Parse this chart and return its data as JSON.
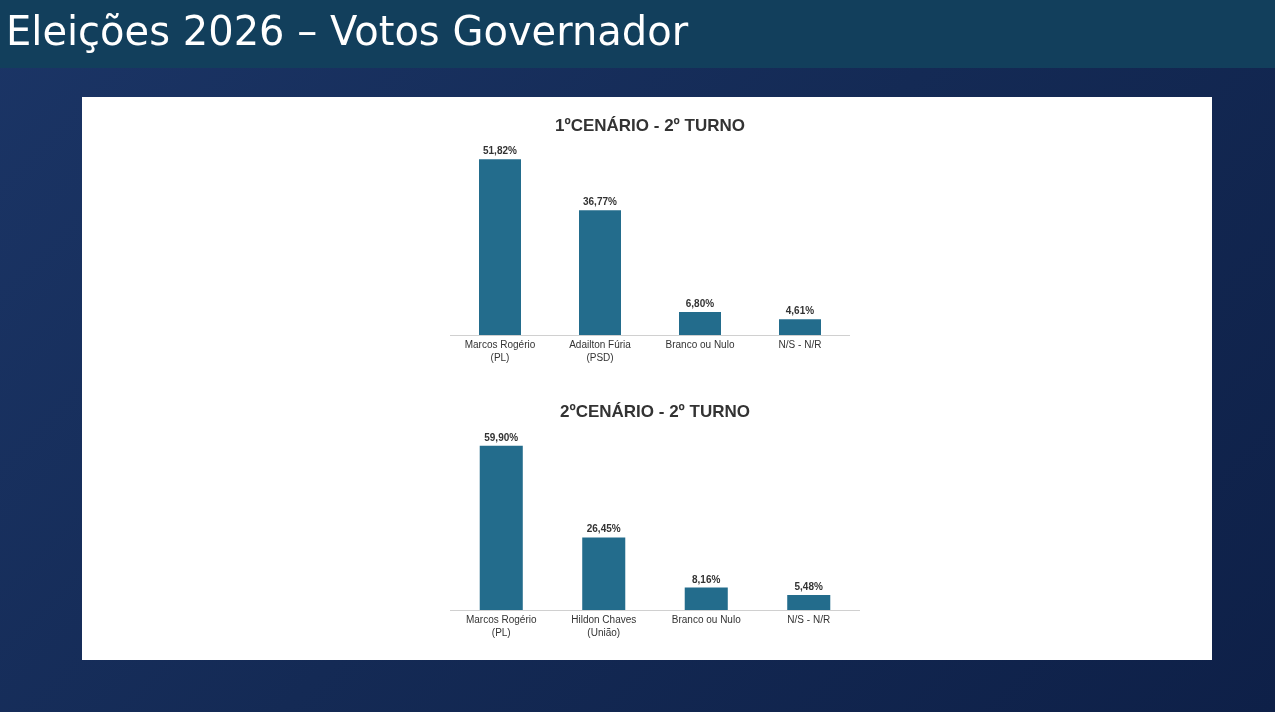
{
  "chart_data": [
    {
      "type": "bar",
      "title": "1ºCENÁRIO - 2º TURNO",
      "annotations": [
        "Eleições 2026 – Votos Governador"
      ],
      "categories": [
        "Marcos Rogério\n(PL)",
        "Adailton Fúria\n(PSD)",
        "Branco ou Nulo",
        "N/S - N/R"
      ],
      "values": [
        51.82,
        36.77,
        6.8,
        4.61
      ],
      "value_labels": [
        "51,82%",
        "36,77%",
        "6,80%",
        "4,61%"
      ],
      "color": "#236c8c"
    },
    {
      "type": "bar",
      "title": "2ºCENÁRIO - 2º TURNO",
      "categories": [
        "Marcos Rogério\n(PL)",
        "Hildon Chaves\n(União)",
        "Branco ou Nulo",
        "N/S - N/R"
      ],
      "values": [
        59.9,
        26.45,
        8.16,
        5.48
      ],
      "value_labels": [
        "59,90%",
        "26,45%",
        "8,16%",
        "5,48%"
      ],
      "color": "#236c8c"
    }
  ]
}
